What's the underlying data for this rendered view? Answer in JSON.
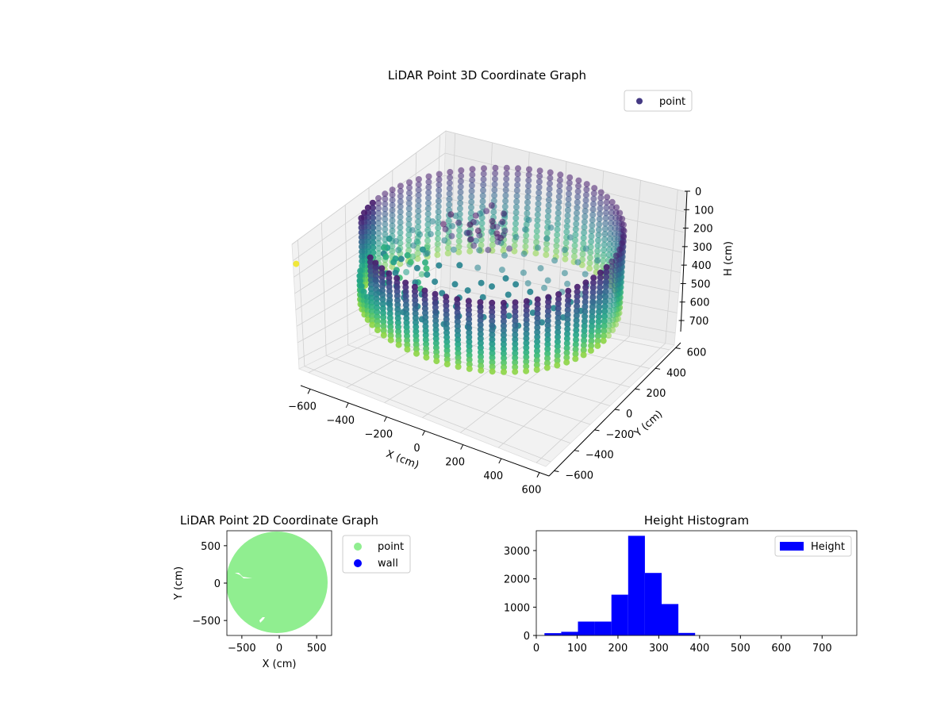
{
  "colors": {
    "viridis_dark": "#440154",
    "viridis_mid": "#21918c",
    "viridis_light": "#fde725",
    "point2d": "#90ee90",
    "wall": "#0000ff",
    "hist_bar": "#0000ff",
    "legend_point_marker": "#443983"
  },
  "chart_data": [
    {
      "type": "scatter",
      "projection": "3d",
      "title": "LiDAR Point 3D Coordinate Graph",
      "xlabel": "X (cm)",
      "ylabel": "Y (cm)",
      "zlabel": "H (cm)",
      "xlim": [
        -650,
        650
      ],
      "ylim": [
        -650,
        650
      ],
      "zlim": [
        760,
        0
      ],
      "x_ticks": [
        "−600",
        "−400",
        "−200",
        "0",
        "200",
        "400",
        "600"
      ],
      "y_ticks": [
        "−600",
        "−400",
        "−200",
        "0",
        "200",
        "400",
        "600"
      ],
      "z_ticks": [
        "0",
        "100",
        "200",
        "300",
        "400",
        "500",
        "600",
        "700"
      ],
      "z_inverted": true,
      "colormap": "viridis",
      "shape": "cylindrical wall",
      "radius": 600,
      "wall_height_range": [
        0,
        450
      ],
      "legend": {
        "labels": [
          "point"
        ],
        "location": "upper right"
      },
      "grid": true
    },
    {
      "type": "scatter",
      "title": "LiDAR Point 2D Coordinate Graph",
      "xlabel": "X (cm)",
      "ylabel": "Y (cm)",
      "xlim": [
        -700,
        700
      ],
      "ylim": [
        -700,
        700
      ],
      "x_ticks": [
        "−500",
        "0",
        "500"
      ],
      "y_ticks": [
        "500",
        "0",
        "−500"
      ],
      "shape": "filled disc",
      "radius": 600,
      "legend": {
        "labels": [
          "point",
          "wall"
        ],
        "location": "outside right"
      }
    },
    {
      "type": "bar",
      "subtype": "histogram",
      "title": "Height Histogram",
      "xlabel": "",
      "ylabel": "",
      "bin_edges": [
        20,
        61,
        102,
        143,
        184,
        225,
        266,
        307,
        348,
        389,
        430,
        471,
        512,
        553,
        594,
        635,
        676,
        717,
        758
      ],
      "counts": [
        80,
        130,
        490,
        490,
        1440,
        3520,
        2210,
        1110,
        90,
        0,
        0,
        0,
        0,
        0,
        0,
        0,
        0,
        0
      ],
      "xlim": [
        0,
        785
      ],
      "ylim": [
        0,
        3700
      ],
      "x_ticks": [
        "0",
        "100",
        "200",
        "300",
        "400",
        "500",
        "600",
        "700"
      ],
      "y_ticks": [
        "0",
        "1000",
        "2000",
        "3000"
      ],
      "legend": {
        "labels": [
          "Height"
        ],
        "location": "upper right"
      }
    }
  ]
}
